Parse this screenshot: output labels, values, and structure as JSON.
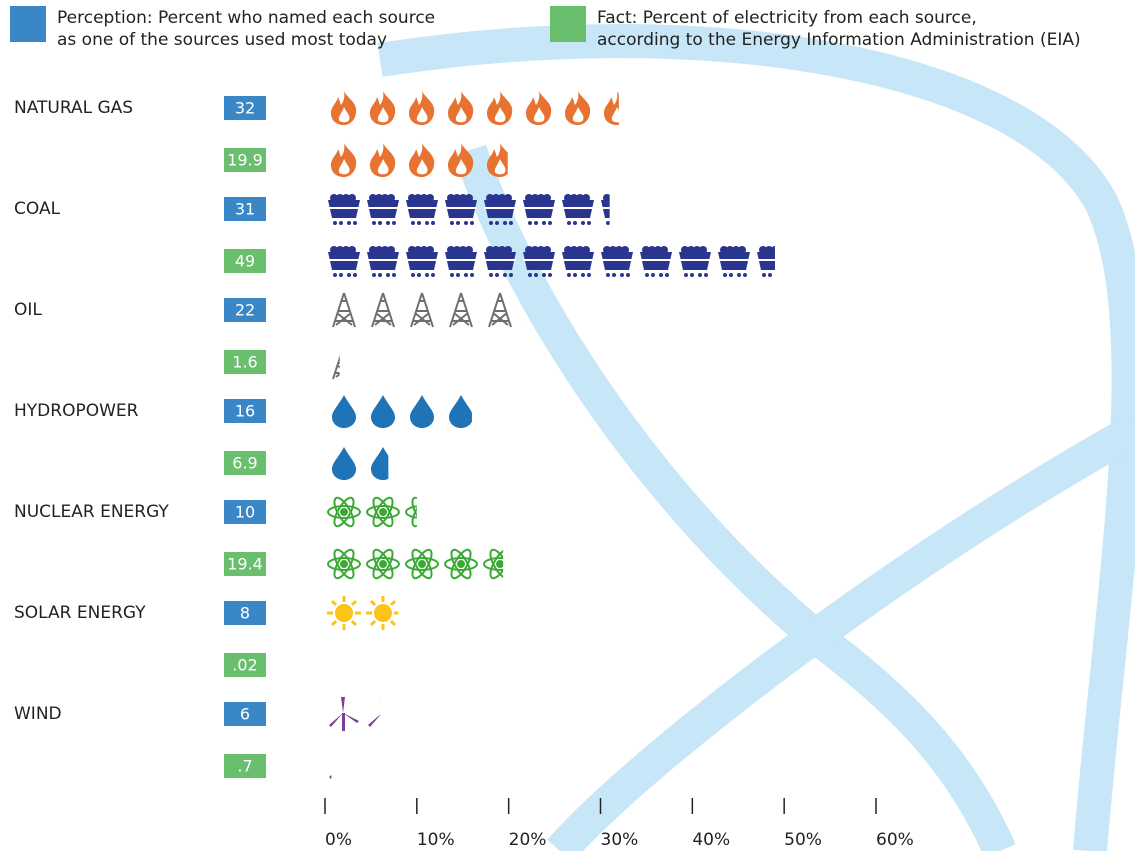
{
  "chart_data": {
    "type": "bar",
    "categories": [
      "NATURAL GAS",
      "COAL",
      "OIL",
      "HYDROPOWER",
      "NUCLEAR ENERGY",
      "SOLAR ENERGY",
      "WIND"
    ],
    "colors": [
      "#e8722f",
      "#2a3590",
      "#6d6e71",
      "#1f73b7",
      "#3aaa35",
      "#fcc419",
      "#7b3f98"
    ],
    "series": [
      {
        "name": "Perception: Percent who named each source as one of the sources used most today",
        "color": "#3a87c8",
        "values": [
          32,
          31,
          22,
          16,
          10,
          8,
          6
        ]
      },
      {
        "name": "Fact: Percent of electricity from each source, according to the Energy Information Administration (EIA)",
        "color": "#6abf6e",
        "values": [
          19.9,
          49,
          1.6,
          6.9,
          19.4,
          0.02,
          0.7
        ],
        "value_labels": [
          "19.9",
          "49",
          "1.6",
          "6.9",
          "19.4",
          ".02",
          ".7"
        ]
      }
    ],
    "xlim": [
      0,
      60
    ],
    "xticks": [
      {
        "value": 0,
        "label": "0%"
      },
      {
        "value": 10,
        "label": "10%"
      },
      {
        "value": 20,
        "label": "20%"
      },
      {
        "value": 30,
        "label": "30%"
      },
      {
        "value": 40,
        "label": "40%"
      },
      {
        "value": 50,
        "label": "50%"
      },
      {
        "value": 60,
        "label": "60%"
      }
    ]
  }
}
